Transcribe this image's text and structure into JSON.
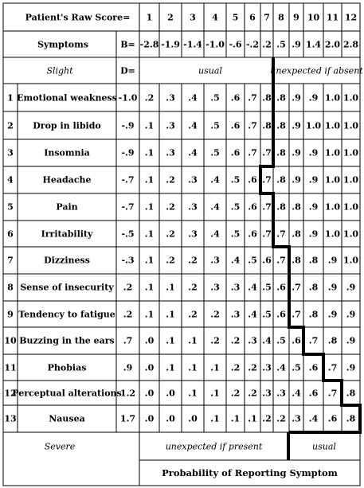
{
  "header": {
    "raw_score_label": "Patient's Raw Score=",
    "raw_scores": [
      "1",
      "2",
      "3",
      "4",
      "5",
      "6",
      "7",
      "8",
      "9",
      "10",
      "11",
      "12"
    ],
    "symptoms_label": "Symptoms",
    "b_label": "B=",
    "b_values": [
      "-2.8",
      "-1.9",
      "-1.4",
      "-1.0",
      "-.6",
      "-.2",
      ".2",
      ".5",
      ".9",
      "1.4",
      "2.0",
      "2.8"
    ],
    "slight_label": "Slight",
    "d_label": "D=",
    "usual_label": "usual",
    "unexpected_absent_label": "unexpected if absent"
  },
  "rows": [
    {
      "num": "1",
      "name": "Emotional weakness",
      "d": "-1.0",
      "p": [
        ".2",
        ".3",
        ".4",
        ".5",
        ".6",
        ".7",
        ".8",
        ".8",
        ".9",
        ".9",
        "1.0",
        "1.0"
      ]
    },
    {
      "num": "2",
      "name": "Drop in libido",
      "d": "-.9",
      "p": [
        ".1",
        ".3",
        ".4",
        ".5",
        ".6",
        ".7",
        ".8",
        ".8",
        ".9",
        "1.0",
        "1.0",
        "1.0"
      ]
    },
    {
      "num": "3",
      "name": "Insomnia",
      "d": "-.9",
      "p": [
        ".1",
        ".3",
        ".4",
        ".5",
        ".6",
        ".7",
        ".7",
        ".8",
        ".9",
        ".9",
        "1.0",
        "1.0"
      ]
    },
    {
      "num": "4",
      "name": "Headache",
      "d": "-.7",
      "p": [
        ".1",
        ".2",
        ".3",
        ".4",
        ".5",
        ".6",
        ".7",
        ".8",
        ".9",
        ".9",
        "1.0",
        "1.0"
      ]
    },
    {
      "num": "5",
      "name": "Pain",
      "d": "-.7",
      "p": [
        ".1",
        ".2",
        ".3",
        ".4",
        ".5",
        ".6",
        ".7",
        ".8",
        ".8",
        ".9",
        "1.0",
        "1.0"
      ]
    },
    {
      "num": "6",
      "name": "Irritability",
      "d": "-.5",
      "p": [
        ".1",
        ".2",
        ".3",
        ".4",
        ".5",
        ".6",
        ".7",
        ".7",
        ".8",
        ".9",
        "1.0",
        "1.0"
      ]
    },
    {
      "num": "7",
      "name": "Dizziness",
      "d": "-.3",
      "p": [
        ".1",
        ".2",
        ".2",
        ".3",
        ".4",
        ".5",
        ".6",
        ".7",
        ".8",
        ".8",
        ".9",
        "1.0"
      ]
    },
    {
      "num": "8",
      "name": "Sense of insecurity",
      "d": ".2",
      "p": [
        ".1",
        ".1",
        ".2",
        ".3",
        ".3",
        ".4",
        ".5",
        ".6",
        ".7",
        ".8",
        ".9",
        ".9"
      ]
    },
    {
      "num": "9",
      "name": "Tendency to fatigue",
      "d": ".2",
      "p": [
        ".1",
        ".1",
        ".2",
        ".2",
        ".3",
        ".4",
        ".5",
        ".6",
        ".7",
        ".8",
        ".9",
        ".9"
      ]
    },
    {
      "num": "10",
      "name": "Buzzing in the ears",
      "d": ".7",
      "p": [
        ".0",
        ".1",
        ".1",
        ".2",
        ".2",
        ".3",
        ".4",
        ".5",
        ".6",
        ".7",
        ".8",
        ".9"
      ]
    },
    {
      "num": "11",
      "name": "Phobias",
      "d": ".9",
      "p": [
        ".0",
        ".1",
        ".1",
        ".1",
        ".2",
        ".2",
        ".3",
        ".4",
        ".5",
        ".6",
        ".7",
        ".9"
      ]
    },
    {
      "num": "12",
      "name": "Perceptual alterations",
      "d": "1.2",
      "p": [
        ".0",
        ".0",
        ".1",
        ".1",
        ".2",
        ".2",
        ".3",
        ".3",
        ".4",
        ".6",
        ".7",
        ".8"
      ]
    },
    {
      "num": "13",
      "name": "Nausea",
      "d": "1.7",
      "p": [
        ".0",
        ".0",
        ".0",
        ".1",
        ".1",
        ".1",
        ".2",
        ".2",
        ".3",
        ".4",
        ".6",
        ".8"
      ]
    }
  ],
  "footer": {
    "severe_label": "Severe",
    "unexpected_present_label": "unexpected if present",
    "usual_label": "usual",
    "probability_label": "Probability of Reporting Symptom"
  },
  "thick_path": {
    "boundary_after_column": [
      6,
      6,
      6,
      5,
      6,
      6,
      7,
      7,
      7,
      8,
      9,
      10,
      11
    ]
  }
}
